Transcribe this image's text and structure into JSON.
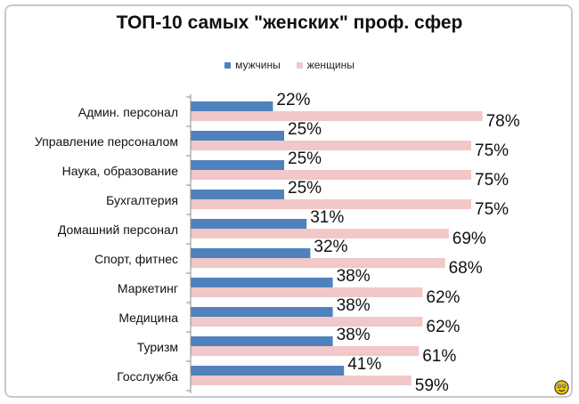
{
  "chart_data": {
    "type": "bar",
    "orientation": "horizontal",
    "title": "ТОП-10 самых \"женских\" проф. сфер",
    "categories": [
      "Админ. персонал",
      "Управление персоналом",
      "Наука, образование",
      "Бухгалтерия",
      "Домашний персонал",
      "Спорт, фитнес",
      "Маркетинг",
      "Медицина",
      "Туризм",
      "Госслужба"
    ],
    "series": [
      {
        "name": "мужчины",
        "color": "#4f81bd",
        "values": [
          22,
          25,
          25,
          25,
          31,
          32,
          38,
          38,
          38,
          41
        ],
        "labels": [
          "22%",
          "25%",
          "25%",
          "25%",
          "31%",
          "32%",
          "38%",
          "38%",
          "38%",
          "41%"
        ]
      },
      {
        "name": "женщины",
        "color": "#f2c7c7",
        "values": [
          78,
          75,
          75,
          75,
          69,
          68,
          62,
          62,
          61,
          59
        ],
        "labels": [
          "78%",
          "75%",
          "75%",
          "75%",
          "69%",
          "68%",
          "62%",
          "62%",
          "61%",
          "59%"
        ]
      }
    ],
    "xlim": [
      0,
      100
    ],
    "legend_position": "top",
    "grid": false
  },
  "decor": {
    "corner_icon": "smiley-icon"
  }
}
